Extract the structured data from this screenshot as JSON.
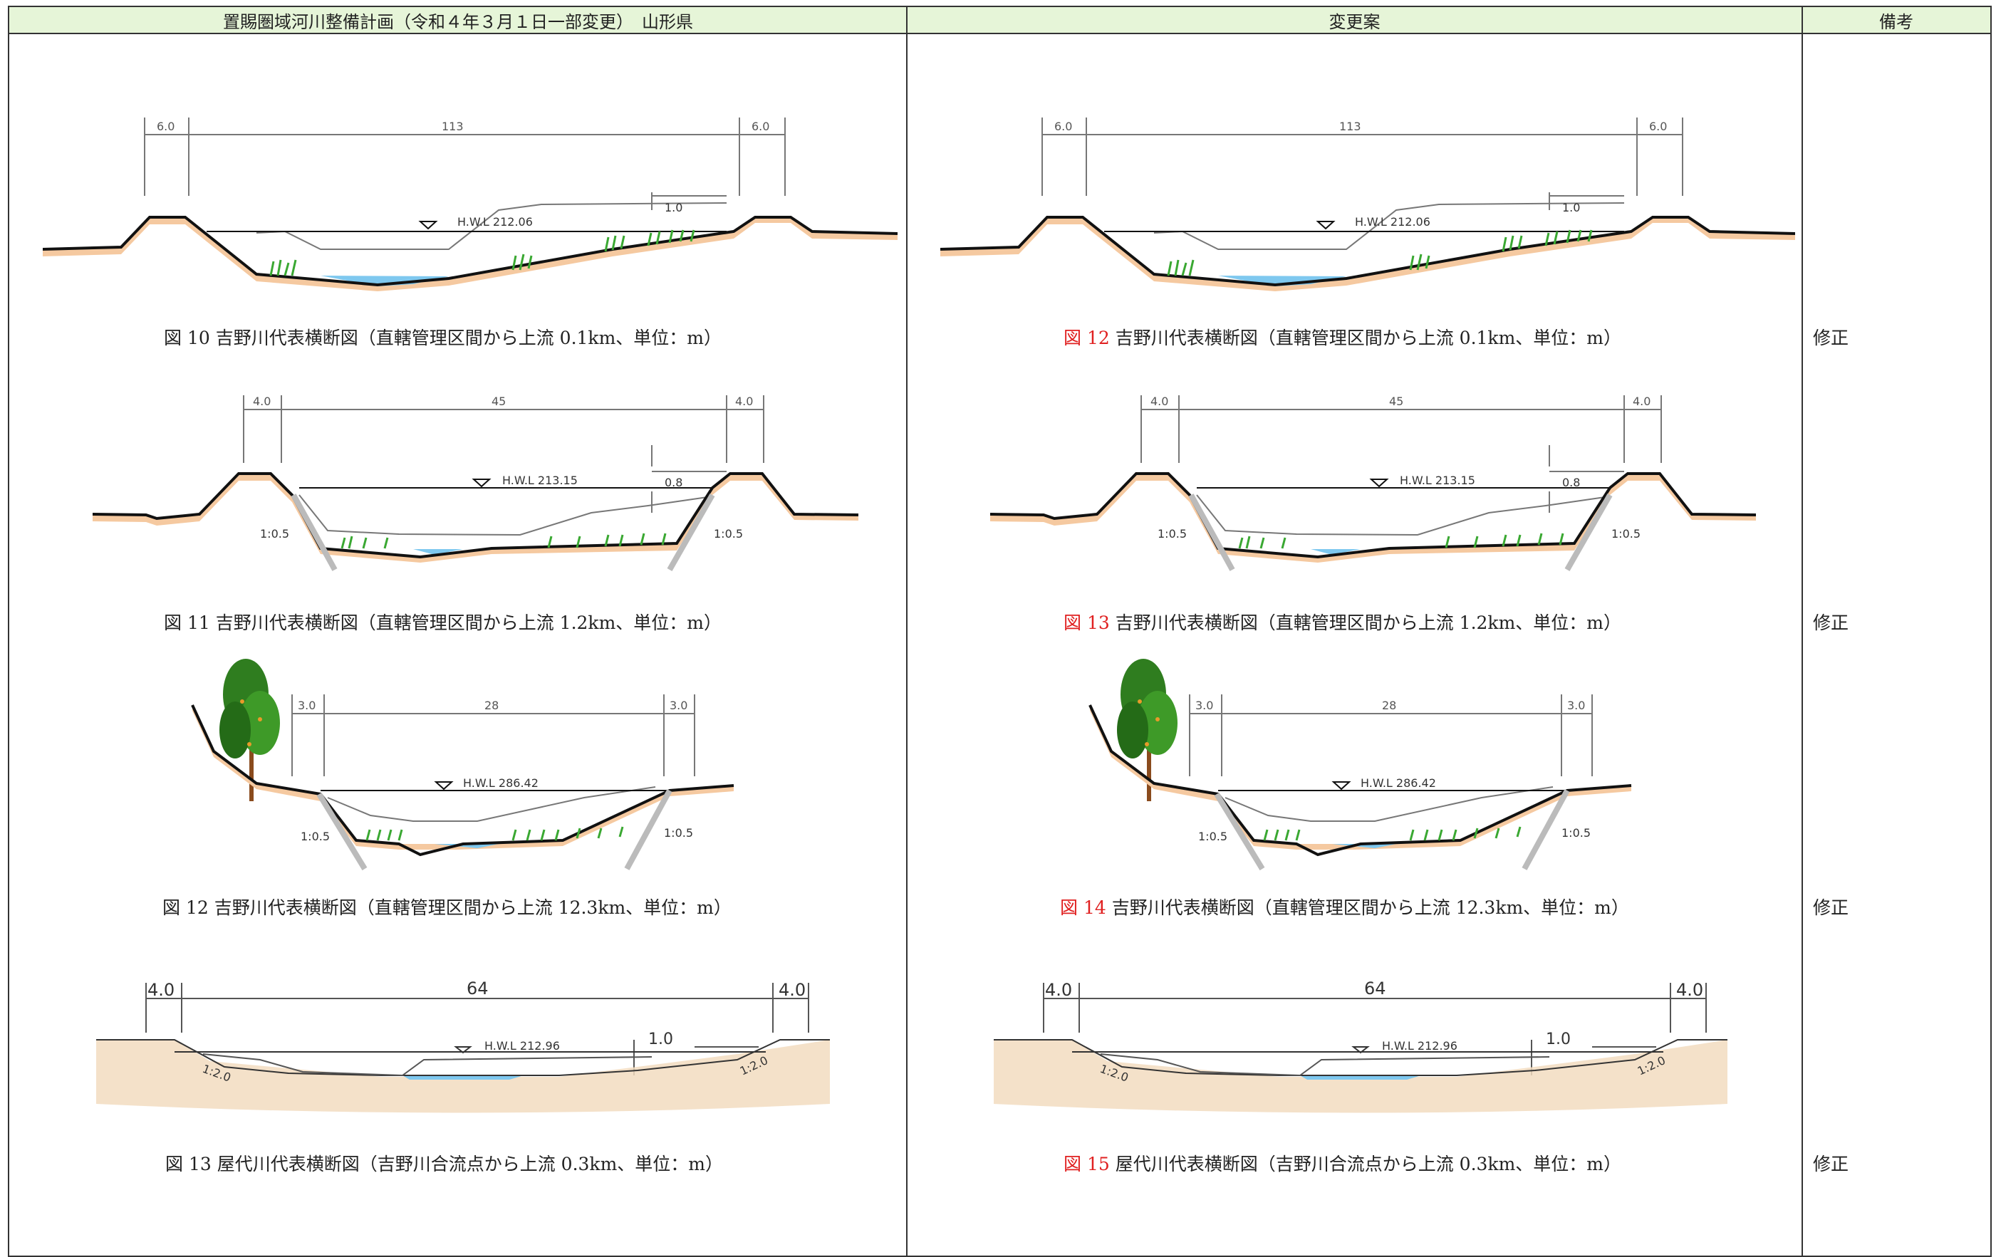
{
  "header": {
    "col1": "置賜圏域河川整備計画（令和４年３月１日一部変更）　山形県",
    "col2": "変更案",
    "col3": "備考"
  },
  "rows": [
    {
      "orig_num": "図 10",
      "new_num": "図 12",
      "caption_text": "吉野川代表横断図（直轄管理区間から上流 0.1km、単位：m）",
      "remark": "修正",
      "dims": [
        "6.0",
        "113",
        "6.0"
      ],
      "hwl": "H.W.L 212.06",
      "freeboard": "1.0"
    },
    {
      "orig_num": "図 11",
      "new_num": "図 13",
      "caption_text": "吉野川代表横断図（直轄管理区間から上流 1.2km、単位：m）",
      "remark": "修正",
      "dims": [
        "4.0",
        "45",
        "4.0"
      ],
      "hwl": "H.W.L 213.15",
      "freeboard": "0.8",
      "slope": "1:0.5"
    },
    {
      "orig_num": "図 12",
      "new_num": "図 14",
      "caption_text": "吉野川代表横断図（直轄管理区間から上流 12.3km、単位：m）",
      "remark": "修正",
      "dims": [
        "3.0",
        "28",
        "3.0"
      ],
      "hwl": "H.W.L 286.42",
      "slope": "1:0.5"
    },
    {
      "orig_num": "図 13",
      "new_num": "図 15",
      "caption_text": "屋代川代表横断図（吉野川合流点から上流 0.3km、単位：m）",
      "remark": "修正",
      "dims": [
        "4.0",
        "64",
        "4.0"
      ],
      "hwl": "H.W.L 212.96",
      "freeboard": "1.0",
      "slope": "1:2.0"
    }
  ],
  "colors": {
    "header_bg": "#e6f5d8",
    "accent_red": "#e02020",
    "water": "#7ec8ef",
    "grass": "#3aa832",
    "bank": "#f5c9a0"
  }
}
